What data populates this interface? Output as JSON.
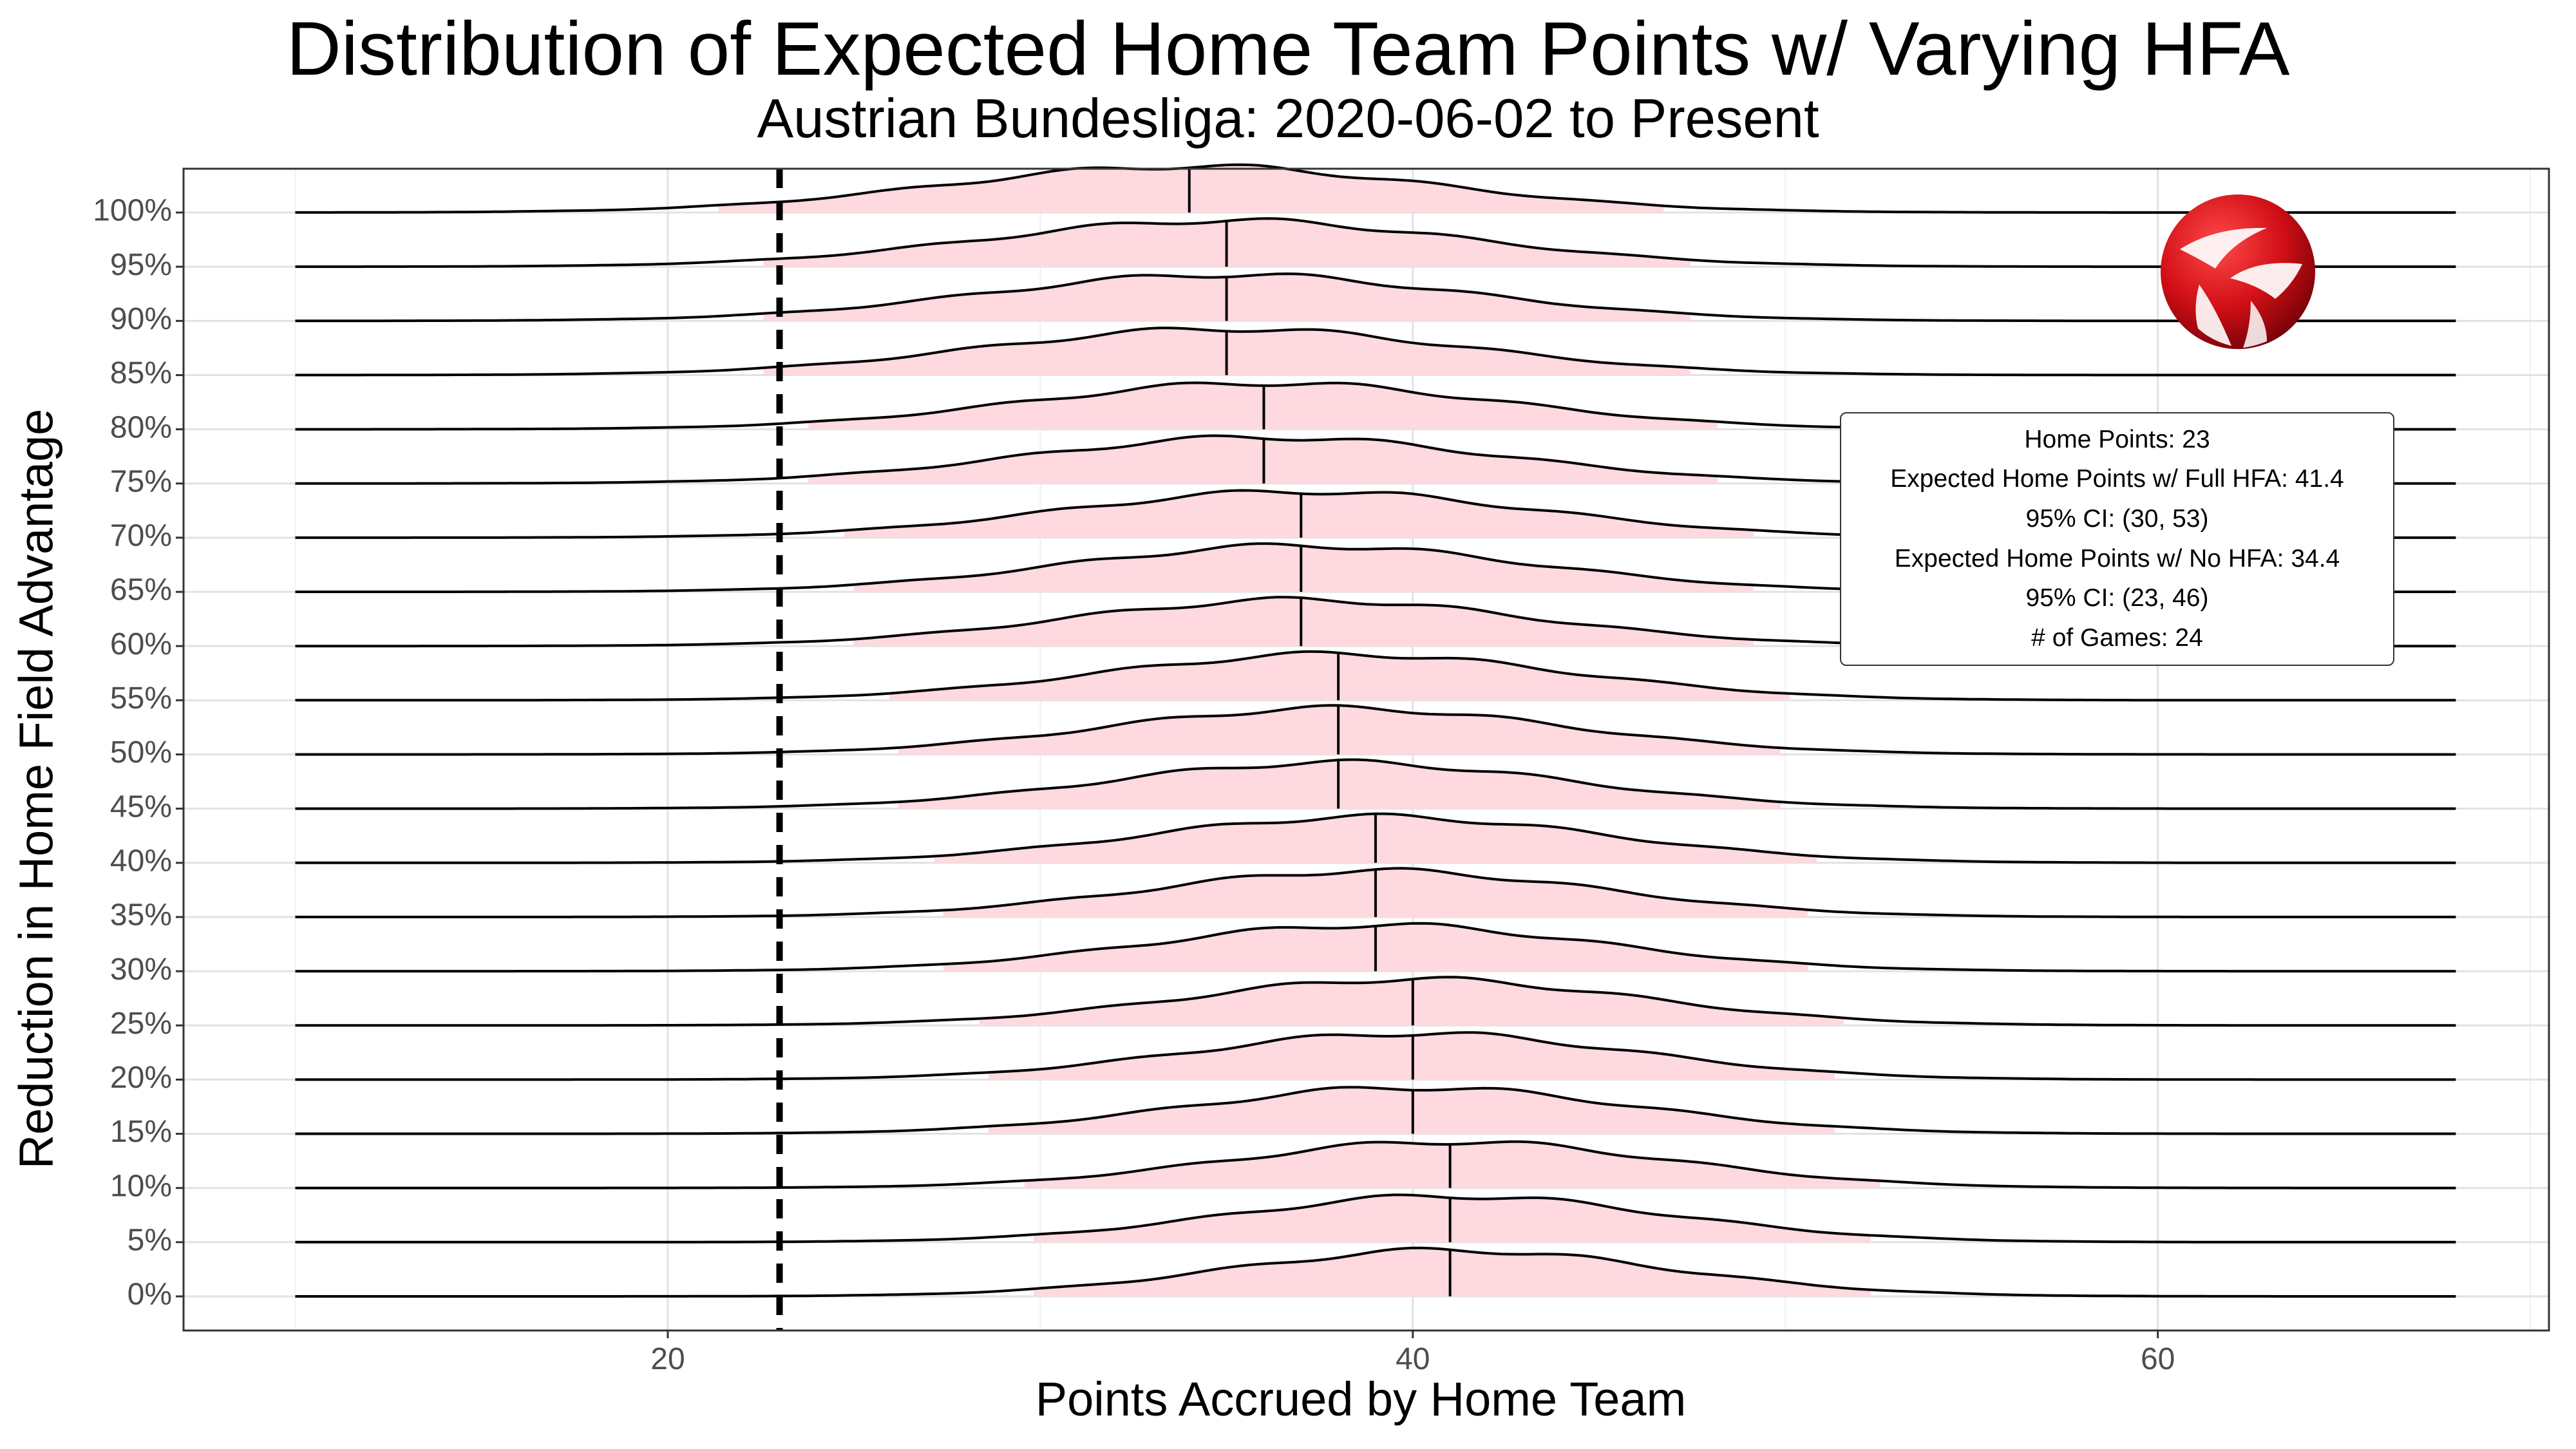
{
  "chart_data": {
    "type": "ridgeline",
    "title": "Distribution of Expected Home Team Points w/ Varying HFA",
    "subtitle": "Austrian Bundesliga: 2020-06-02 to Present",
    "xlabel": "Points Accrued by Home Team",
    "ylabel": "Reduction in Home Field Advantage",
    "x_ticks": [
      "20",
      "40",
      "60"
    ],
    "x_tick_values": [
      20,
      40,
      60
    ],
    "xlim": [
      7,
      70.5
    ],
    "density_x_range": [
      10,
      68
    ],
    "categories": [
      "0%",
      "5%",
      "10%",
      "15%",
      "20%",
      "25%",
      "30%",
      "35%",
      "40%",
      "45%",
      "50%",
      "55%",
      "60%",
      "65%",
      "70%",
      "75%",
      "80%",
      "85%",
      "90%",
      "95%",
      "100%"
    ],
    "median_points": [
      41,
      41,
      41,
      40,
      40,
      40,
      39,
      39,
      39,
      38,
      38,
      38,
      37,
      37,
      37,
      36,
      36,
      35,
      35,
      35,
      34
    ],
    "density_sd": [
      5.8,
      5.8,
      5.9,
      5.9,
      5.9,
      6.0,
      6.0,
      6.0,
      6.1,
      6.1,
      6.1,
      6.2,
      6.2,
      6.2,
      6.3,
      6.3,
      6.3,
      6.4,
      6.4,
      6.4,
      6.5
    ],
    "reference_line": {
      "x": 23,
      "style": "dashed"
    },
    "fill_color": "#ffd9e0",
    "line_color": "#000000",
    "grid": true,
    "annotation": {
      "lines": [
        "Home Points: 23",
        "Expected Home Points w/ Full HFA: 41.4",
        "95% CI: (30, 53)",
        "Expected Home Points w/ No HFA: 34.4",
        "95% CI: (23, 46)",
        "# of Games: 24"
      ],
      "placement": "right"
    },
    "logo": "austrian-bundesliga-logo"
  }
}
